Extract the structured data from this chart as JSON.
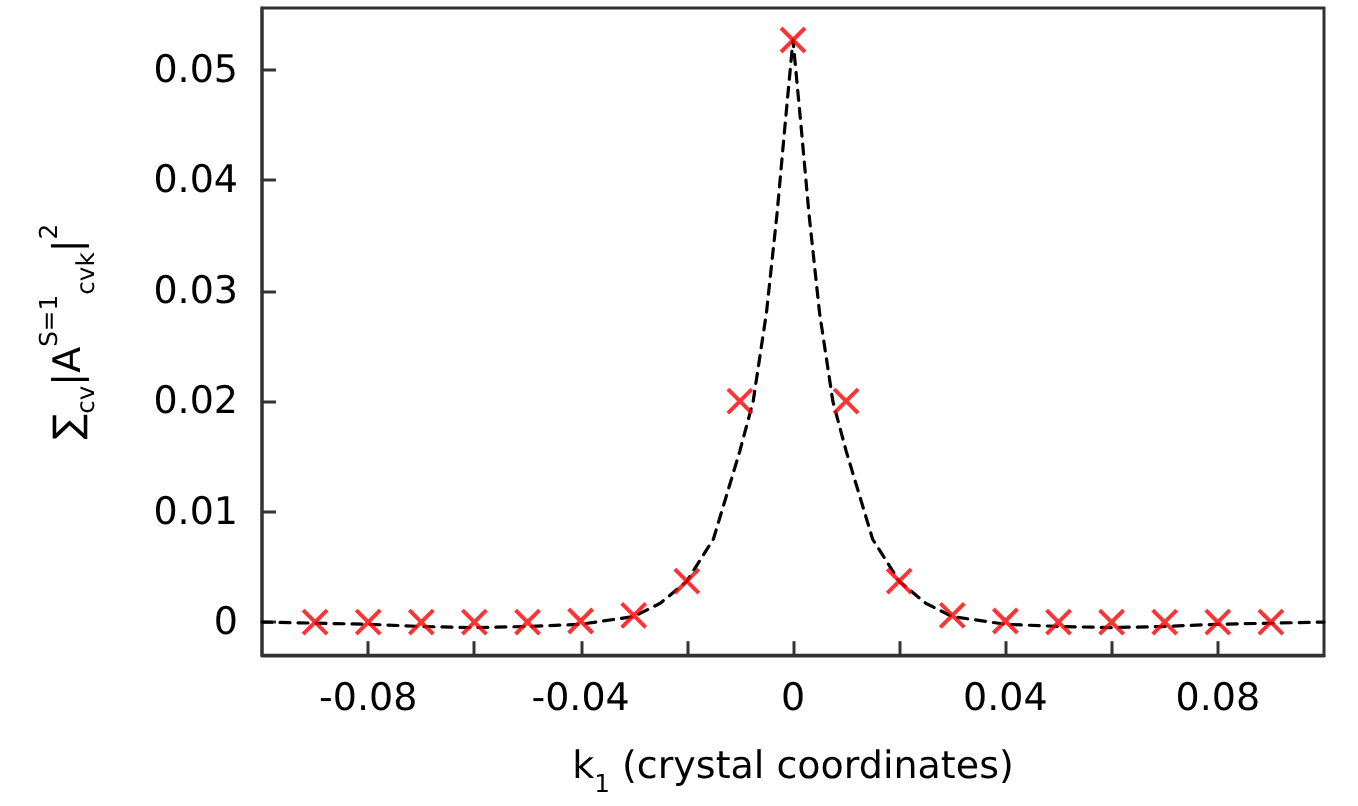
{
  "chart_data": {
    "type": "scatter",
    "xlabel": "k$_{1}$ (crystal coordinates)",
    "ylabel": "∑$_{cv}$|A$^{S=1}$$_{cvk}$|$^{2}$",
    "xlim": [
      -0.1,
      0.1
    ],
    "ylim": [
      -0.003,
      0.0556
    ],
    "xticks": [
      -0.08,
      {
        "value": -0.06,
        "label": null
      },
      -0.04,
      {
        "value": -0.02,
        "label": null
      },
      0,
      {
        "value": 0.02,
        "label": null
      },
      0.04,
      {
        "value": 0.06,
        "label": null
      },
      0.08
    ],
    "yticks": [
      0,
      0.01,
      0.02,
      0.03,
      0.04,
      0.05
    ],
    "grid": false,
    "series": [
      {
        "type": "line",
        "color": "#000000",
        "marker": "none",
        "line_style": "dashed",
        "x": [
          -0.1,
          -0.09,
          -0.08,
          -0.07,
          -0.06,
          -0.05,
          -0.04,
          -0.03,
          -0.025,
          -0.02,
          -0.015,
          -0.01,
          -0.0075,
          -0.005,
          -0.003,
          -0.0015,
          0,
          0.0015,
          0.003,
          0.005,
          0.0075,
          0.01,
          0.015,
          0.02,
          0.025,
          0.03,
          0.04,
          0.05,
          0.06,
          0.07,
          0.08,
          0.09,
          0.1
        ],
        "values": [
          0,
          -0.0001,
          -0.0002,
          -0.0004,
          -0.0005,
          -0.0004,
          -0.0002,
          0.0005,
          0.0017,
          0.0037,
          0.0075,
          0.0155,
          0.02,
          0.028,
          0.037,
          0.045,
          0.0527,
          0.045,
          0.037,
          0.028,
          0.02,
          0.0155,
          0.0075,
          0.0037,
          0.0017,
          0.0005,
          -0.0002,
          -0.0004,
          -0.0005,
          -0.0004,
          -0.0002,
          -0.0001,
          0
        ]
      },
      {
        "color": "#ff0000",
        "marker": "cross",
        "x": [
          -0.09,
          -0.08,
          -0.07,
          -0.06,
          -0.05,
          -0.04,
          -0.03,
          -0.02,
          -0.01,
          0,
          0.01,
          0.02,
          0.03,
          0.04,
          0.05,
          0.06,
          0.07,
          0.08,
          0.09
        ],
        "values": [
          0,
          0,
          0,
          0,
          0,
          0.0001,
          0.0006,
          0.0037,
          0.02,
          0.0527,
          0.02,
          0.0037,
          0.0006,
          0.0001,
          0,
          0,
          0,
          0,
          0
        ]
      }
    ]
  }
}
